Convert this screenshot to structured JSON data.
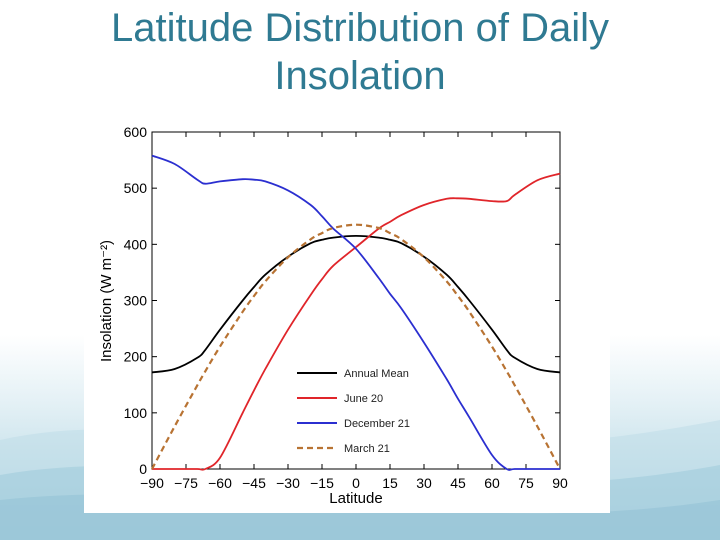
{
  "slide": {
    "title_line1": "Latitude Distribution of Daily",
    "title_line2": "Insolation"
  },
  "chart_data": {
    "type": "line",
    "title": "",
    "xlabel": "Latitude",
    "ylabel": "Insolation (W m⁻²)",
    "xlim": [
      -90,
      90
    ],
    "ylim": [
      0,
      600
    ],
    "xticks": [
      -90,
      -75,
      -60,
      -45,
      -30,
      -15,
      0,
      15,
      30,
      45,
      60,
      75,
      90
    ],
    "xtick_labels": [
      "−90",
      "−75",
      "−60",
      "−45",
      "−30",
      "−15",
      "0",
      "15",
      "30",
      "45",
      "60",
      "75",
      "90"
    ],
    "yticks": [
      0,
      100,
      200,
      300,
      400,
      500,
      600
    ],
    "ytick_labels": [
      "0",
      "100",
      "200",
      "300",
      "400",
      "500",
      "600"
    ],
    "grid": false,
    "legend_position": "bottom-right",
    "x": [
      -90,
      -80,
      -70,
      -66.5,
      -60,
      -50,
      -45,
      -40,
      -30,
      -20,
      -15,
      -10,
      0,
      10,
      15,
      20,
      30,
      40,
      45,
      50,
      60,
      66.5,
      70,
      80,
      90
    ],
    "series": [
      {
        "name": "Annual Mean",
        "color": "#000000",
        "dash": "solid",
        "values": [
          172,
          178,
          198,
          212,
          248,
          300,
          324,
          346,
          378,
          402,
          408,
          412,
          415,
          412,
          408,
          402,
          378,
          346,
          324,
          300,
          248,
          212,
          198,
          178,
          172
        ]
      },
      {
        "name": "June 20",
        "color": "#e0252a",
        "dash": "solid",
        "values": [
          0,
          0,
          0,
          0,
          20,
          100,
          140,
          178,
          248,
          310,
          338,
          362,
          395,
          428,
          440,
          452,
          470,
          481,
          482,
          481,
          477,
          477,
          488,
          514,
          526
        ]
      },
      {
        "name": "December 21",
        "color": "#2b2fd0",
        "dash": "solid",
        "values": [
          558,
          543,
          515,
          508,
          512,
          516,
          515,
          512,
          496,
          470,
          450,
          428,
          392,
          340,
          312,
          286,
          225,
          160,
          125,
          92,
          25,
          0,
          0,
          0,
          0
        ]
      },
      {
        "name": "March 21",
        "color": "#b87333",
        "dash": "dashed",
        "values": [
          0,
          76,
          149,
          174,
          218,
          280,
          308,
          334,
          377,
          409,
          420,
          429,
          435,
          429,
          420,
          409,
          377,
          334,
          308,
          280,
          218,
          174,
          149,
          76,
          0
        ]
      }
    ]
  }
}
